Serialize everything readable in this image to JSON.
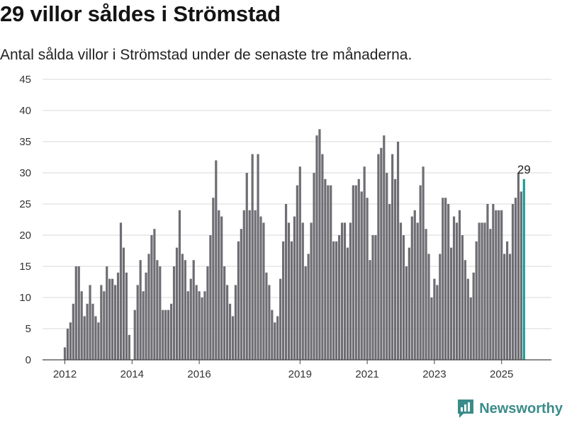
{
  "header": {
    "title": "29 villor såldes i Strömstad",
    "subtitle": "Antal sålda villor i Strömstad under de senaste tre månaderna."
  },
  "brand": {
    "name": "Newsworthy",
    "icon": "newsworthy-logo-icon"
  },
  "colors": {
    "bar": "#6d6d73",
    "highlight": "#1a9e96",
    "grid": "#d9d9d9",
    "axis": "#444444",
    "brand": "#3a8c8a"
  },
  "chart_data": {
    "type": "bar",
    "xlabel": "",
    "ylabel": "",
    "ylim": [
      0,
      45
    ],
    "yticks": [
      0,
      5,
      10,
      15,
      20,
      25,
      30,
      35,
      40,
      45
    ],
    "xticks": [
      {
        "label": "2012",
        "year": 2012
      },
      {
        "label": "2014",
        "year": 2014
      },
      {
        "label": "2016",
        "year": 2016
      },
      {
        "label": "2019",
        "year": 2019
      },
      {
        "label": "2021",
        "year": 2021
      },
      {
        "label": "2023",
        "year": 2023
      },
      {
        "label": "2025",
        "year": 2025
      }
    ],
    "grid": true,
    "start_period": "2012-01",
    "frequency": "monthly",
    "annotation": {
      "text": "29",
      "value": 29
    },
    "highlight_last": true,
    "values": [
      2,
      5,
      6,
      9,
      15,
      15,
      11,
      7,
      9,
      12,
      9,
      7,
      6,
      12,
      11,
      15,
      13,
      13,
      12,
      14,
      22,
      18,
      14,
      4,
      0,
      8,
      12,
      16,
      11,
      14,
      17,
      20,
      21,
      16,
      15,
      8,
      8,
      8,
      9,
      15,
      18,
      24,
      17,
      16,
      11,
      13,
      16,
      12,
      11,
      10,
      11,
      15,
      20,
      26,
      32,
      24,
      23,
      15,
      12,
      9,
      7,
      12,
      19,
      21,
      24,
      30,
      24,
      33,
      24,
      33,
      23,
      22,
      14,
      12,
      8,
      6,
      7,
      13,
      19,
      25,
      22,
      19,
      23,
      28,
      31,
      22,
      15,
      17,
      22,
      30,
      36,
      37,
      33,
      29,
      28,
      28,
      19,
      19,
      20,
      22,
      22,
      18,
      22,
      28,
      28,
      29,
      27,
      31,
      26,
      16,
      20,
      20,
      33,
      34,
      36,
      30,
      25,
      33,
      29,
      35,
      22,
      20,
      15,
      18,
      23,
      24,
      22,
      28,
      31,
      21,
      17,
      10,
      13,
      12,
      17,
      26,
      26,
      25,
      18,
      23,
      22,
      24,
      20,
      16,
      13,
      10,
      14,
      19,
      22,
      22,
      22,
      25,
      21,
      25,
      24,
      24,
      24,
      17,
      19,
      17,
      25,
      26,
      30,
      27,
      29
    ]
  }
}
